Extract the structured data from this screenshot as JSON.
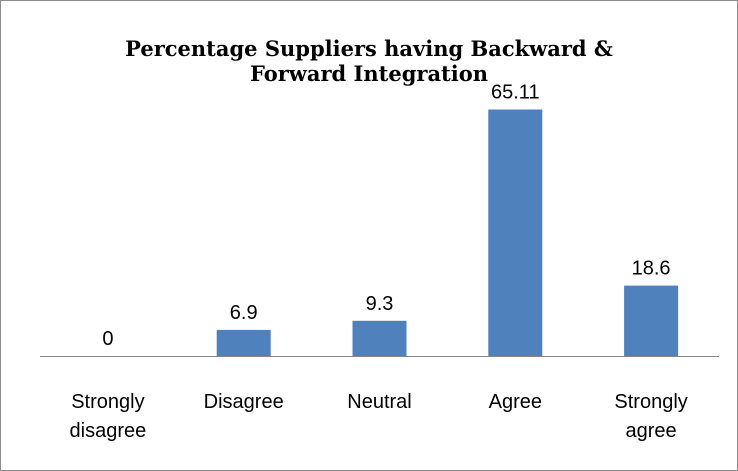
{
  "chart_data": {
    "type": "bar",
    "title_lines": [
      "Percentage Suppliers having Backward &",
      "Forward Integration"
    ],
    "categories": [
      [
        "Strongly",
        "disagree"
      ],
      [
        "Disagree"
      ],
      [
        "Neutral"
      ],
      [
        "Agree"
      ],
      [
        "Strongly",
        "agree"
      ]
    ],
    "values": [
      0,
      6.9,
      9.3,
      65.11,
      18.6
    ],
    "data_labels": [
      "0",
      "6.9",
      "9.3",
      "65.11",
      "18.6"
    ],
    "ylim": [
      0,
      70
    ],
    "grid": false,
    "legend": "none",
    "bar_color": "#4f81bd",
    "axis_color": "#868686"
  }
}
